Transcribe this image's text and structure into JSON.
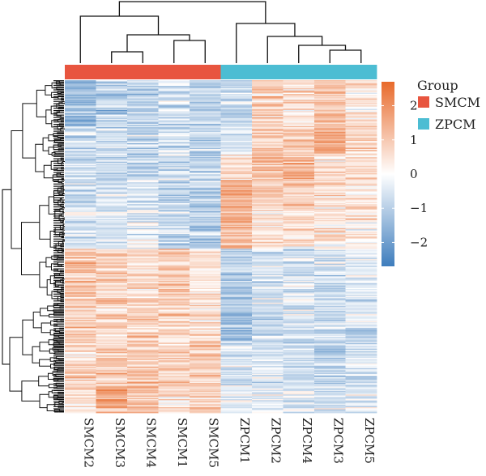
{
  "chart_data": {
    "type": "heatmap",
    "columns": [
      "SMCM2",
      "SMCM3",
      "SMCM4",
      "SMCM1",
      "SMCM5",
      "ZPCM1",
      "ZPCM2",
      "ZPCM4",
      "ZPCM3",
      "ZPCM5"
    ],
    "column_groups": [
      "SMCM",
      "SMCM",
      "SMCM",
      "SMCM",
      "SMCM",
      "ZPCM",
      "ZPCM",
      "ZPCM",
      "ZPCM",
      "ZPCM"
    ],
    "legend": {
      "title": "Group",
      "entries": [
        {
          "label": "SMCM",
          "color": "#e8553f"
        },
        {
          "label": "ZPCM",
          "color": "#4cbdd3"
        }
      ]
    },
    "colorbar": {
      "ticks": [
        2,
        1,
        0,
        -1,
        -2
      ],
      "range": [
        -2.7,
        2.7
      ],
      "low_color": "#3e7dbd",
      "mid_color": "#ffffff",
      "high_color": "#e86a2b"
    },
    "row_block_means": [
      {
        "rows": 40,
        "values": [
          -1.5,
          -0.9,
          -0.9,
          -0.5,
          -0.9,
          -0.9,
          0.8,
          0.6,
          1.1,
          0.4
        ]
      },
      {
        "rows": 25,
        "values": [
          -0.7,
          -0.6,
          -0.8,
          -0.6,
          -0.7,
          -0.5,
          0.9,
          1.0,
          1.4,
          0.7
        ]
      },
      {
        "rows": 22,
        "values": [
          -0.8,
          -0.7,
          -0.9,
          -0.7,
          -0.9,
          0.5,
          1.1,
          1.2,
          0.6,
          0.4
        ]
      },
      {
        "rows": 25,
        "values": [
          -0.8,
          -0.6,
          -0.5,
          -1.0,
          -0.9,
          1.6,
          0.9,
          0.7,
          0.6,
          0.5
        ]
      },
      {
        "rows": 35,
        "values": [
          -0.5,
          -0.4,
          -0.4,
          -0.8,
          -0.9,
          1.4,
          0.6,
          0.5,
          0.4,
          0.3
        ]
      },
      {
        "rows": 45,
        "values": [
          1.1,
          0.8,
          0.6,
          0.9,
          0.5,
          -1.0,
          -0.6,
          -0.5,
          -0.6,
          -0.4
        ]
      },
      {
        "rows": 35,
        "values": [
          0.9,
          0.8,
          0.7,
          0.9,
          0.6,
          -1.3,
          -0.7,
          -0.6,
          -0.7,
          -0.5
        ]
      },
      {
        "rows": 40,
        "values": [
          0.8,
          0.9,
          0.8,
          0.8,
          0.9,
          -0.6,
          -0.5,
          -0.7,
          -1.0,
          -0.6
        ]
      },
      {
        "rows": 23,
        "values": [
          0.6,
          1.5,
          1.1,
          0.6,
          0.9,
          -0.4,
          -0.3,
          -0.5,
          -0.5,
          -0.4
        ]
      }
    ]
  }
}
